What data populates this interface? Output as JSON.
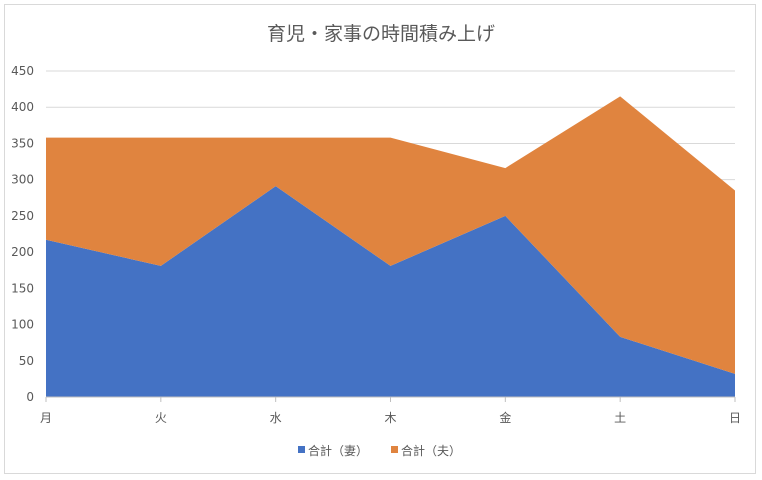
{
  "chart_data": {
    "type": "area",
    "stacked": true,
    "title": "育児・家事の時間積み上げ",
    "categories": [
      "月",
      "火",
      "水",
      "木",
      "金",
      "土",
      "日"
    ],
    "ylim": [
      0,
      450
    ],
    "yticks": [
      0,
      50,
      100,
      150,
      200,
      250,
      300,
      350,
      400,
      450
    ],
    "grid": true,
    "legend_position": "bottom",
    "series": [
      {
        "name": "合計（妻）",
        "color": "#4472c4",
        "values": [
          217,
          181,
          291,
          181,
          250,
          83,
          32
        ]
      },
      {
        "name": "合計（夫）",
        "color": "#e0843f",
        "values": [
          141,
          177,
          67,
          177,
          66,
          332,
          253
        ]
      }
    ]
  }
}
